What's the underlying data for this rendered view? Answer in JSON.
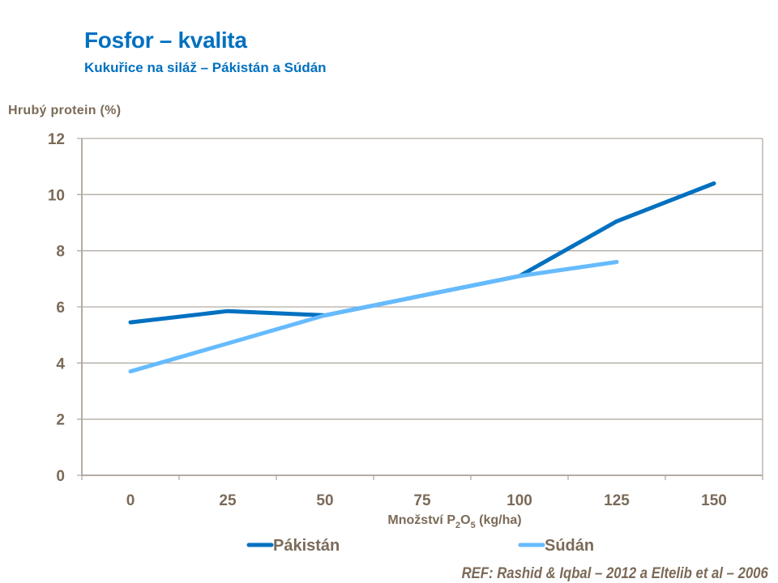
{
  "header": {
    "title": "Fosfor – kvalita",
    "subtitle": "Kukuřice na siláž – Pákistán a Súdán"
  },
  "reference": "REF: Rashid & Iqbal – 2012 a Eltelib et al – 2006",
  "colors": {
    "title": "#0070c0",
    "axis_text": "#7b6a58",
    "grid": "#b3aca3",
    "pakistan": "#0070c0",
    "sudan": "#66bbff"
  },
  "chart_data": {
    "type": "line",
    "title": "Fosfor – kvalita",
    "subtitle": "Kukuřice na siláž – Pákistán a Súdán",
    "xlabel": "Množství P2O5 (kg/ha)",
    "xlabel_parts": {
      "pre": "Množství P",
      "sub1": "2",
      "mid": "O",
      "sub2": "5",
      "post": " (kg/ha)"
    },
    "ylabel": "Hrubý protein (%)",
    "categories": [
      "0",
      "25",
      "50",
      "75",
      "100",
      "125",
      "150"
    ],
    "yticks": [
      "0",
      "2",
      "4",
      "6",
      "8",
      "10",
      "12"
    ],
    "ylim": [
      0,
      12
    ],
    "grid": true,
    "legend_position": "bottom",
    "series": [
      {
        "name": "Pákistán",
        "values": [
          5.45,
          5.85,
          5.7,
          6.4,
          7.1,
          9.05,
          10.4
        ]
      },
      {
        "name": "Súdán",
        "values": [
          3.7,
          4.7,
          5.7,
          6.4,
          7.1,
          7.6,
          null
        ]
      }
    ]
  }
}
